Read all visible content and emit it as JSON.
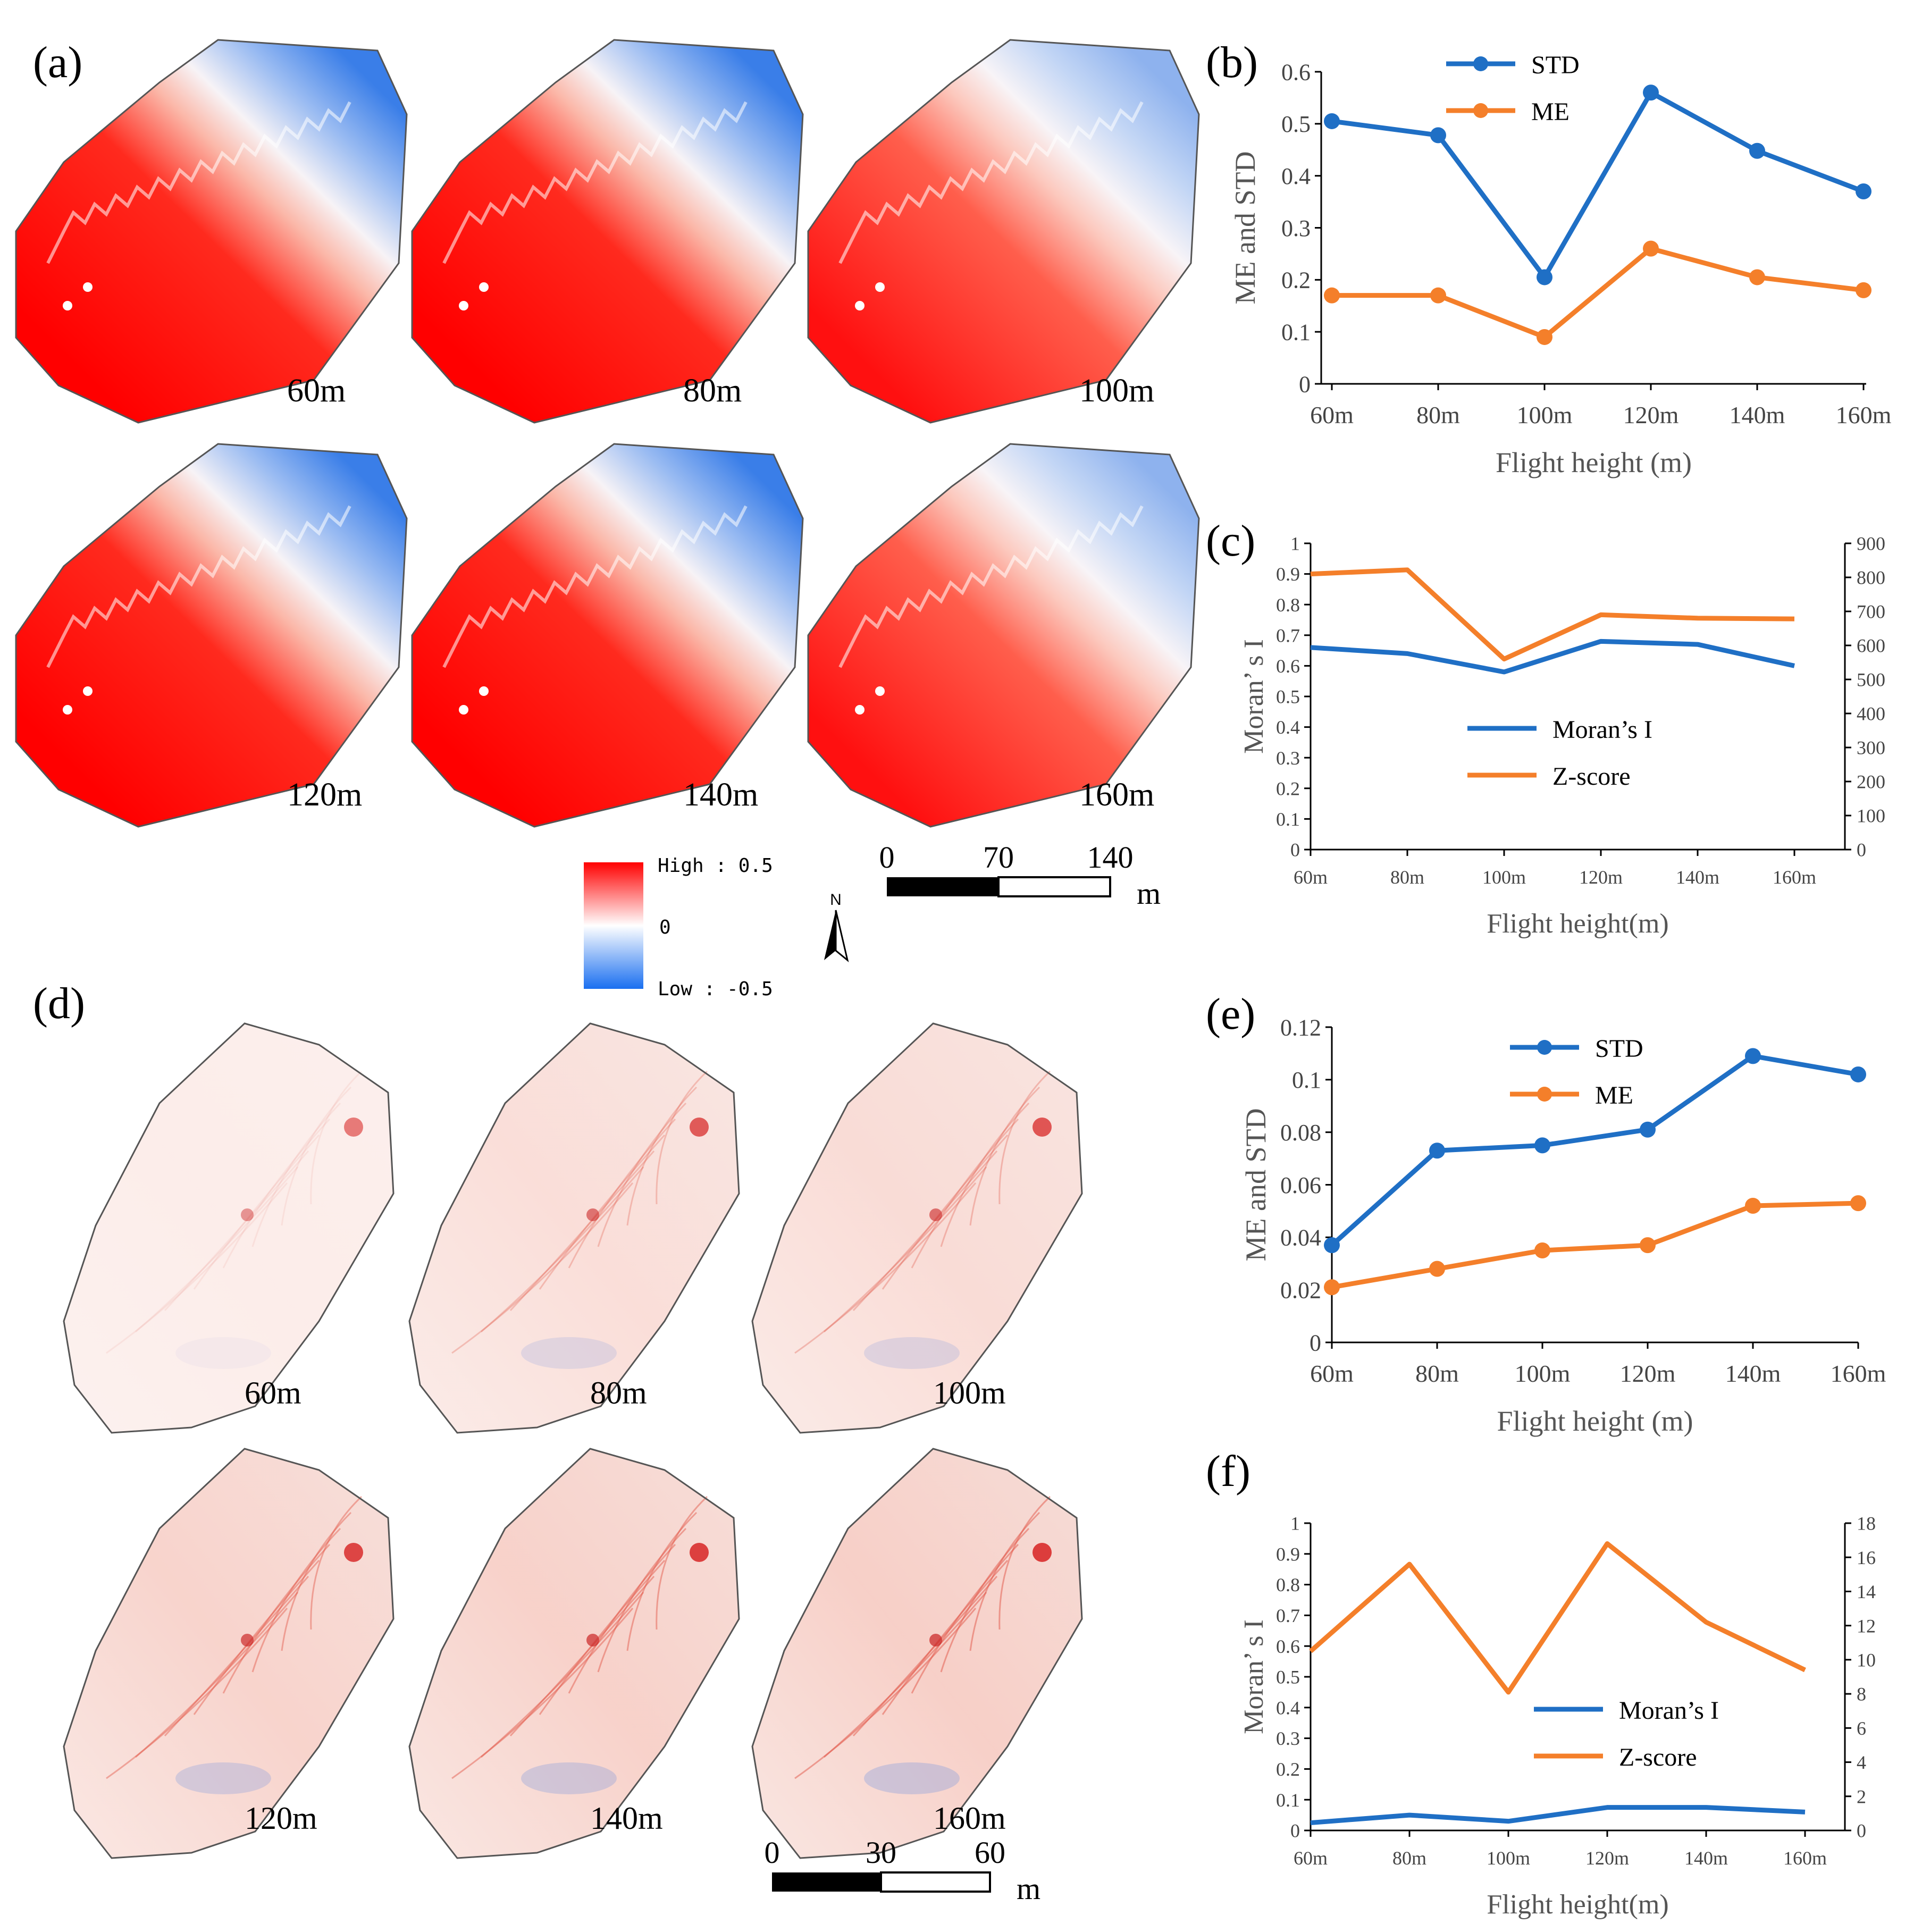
{
  "panels": {
    "a": "(a)",
    "b": "(b)",
    "c": "(c)",
    "d": "(d)",
    "e": "(e)",
    "f": "(f)"
  },
  "maps_a": {
    "labels": [
      "60m",
      "80m",
      "100m",
      "120m",
      "140m",
      "160m"
    ],
    "intensity": [
      1.0,
      1.0,
      0.7,
      1.0,
      1.0,
      0.75
    ]
  },
  "maps_d": {
    "labels": [
      "60m",
      "80m",
      "100m",
      "120m",
      "140m",
      "160m"
    ],
    "intensity": [
      0.15,
      0.5,
      0.55,
      0.75,
      0.8,
      0.85
    ]
  },
  "legend": {
    "high": "High : 0.5",
    "zero": "0",
    "low": "Low : -0.5",
    "north": "N",
    "colors": {
      "high": "#ff0000",
      "mid": "#ffffff",
      "low": "#1a6ff0"
    }
  },
  "scalebar_a": {
    "ticks": [
      "0",
      "70",
      "140"
    ],
    "unit": "m"
  },
  "scalebar_d": {
    "ticks": [
      "0",
      "30",
      "60"
    ],
    "unit": "m"
  },
  "chart_data": [
    {
      "id": "b",
      "type": "line",
      "categories": [
        "60m",
        "80m",
        "100m",
        "120m",
        "140m",
        "160m"
      ],
      "series": [
        {
          "name": "STD",
          "values": [
            0.505,
            0.478,
            0.205,
            0.56,
            0.448,
            0.37
          ],
          "color": "#1f6fc5",
          "markers": true
        },
        {
          "name": "ME",
          "values": [
            0.17,
            0.17,
            0.09,
            0.26,
            0.205,
            0.18
          ],
          "color": "#f47f2a",
          "markers": true
        }
      ],
      "yticks": [
        "0",
        "0.1",
        "0.2",
        "0.3",
        "0.4",
        "0.5",
        "0.6"
      ],
      "ylim": [
        0,
        0.6
      ],
      "ylabel": "ME and STD",
      "xlabel": "Flight height (m)",
      "legend_position": "top-center"
    },
    {
      "id": "c",
      "type": "line",
      "categories": [
        "60m",
        "80m",
        "100m",
        "120m",
        "140m",
        "160m"
      ],
      "series": [
        {
          "name": "Moran's I",
          "axis": "left",
          "values": [
            0.66,
            0.64,
            0.58,
            0.68,
            0.67,
            0.6
          ],
          "color": "#1f6fc5"
        },
        {
          "name": "Z-score",
          "axis": "right",
          "values": [
            810,
            822,
            560,
            690,
            680,
            678
          ],
          "color": "#f47f2a"
        }
      ],
      "yticks_left": [
        "0",
        "0.1",
        "0.2",
        "0.3",
        "0.4",
        "0.5",
        "0.6",
        "0.7",
        "0.8",
        "0.9",
        "1"
      ],
      "yticks_right": [
        "0",
        "100",
        "200",
        "300",
        "400",
        "500",
        "600",
        "700",
        "800",
        "900"
      ],
      "ylim_left": [
        0,
        1
      ],
      "ylim_right": [
        0,
        900
      ],
      "ylabel": "Moran’ s I",
      "xlabel": "Flight height(m)",
      "legend_labels": [
        "Moran’s I",
        "Z-score"
      ],
      "legend_position": "center"
    },
    {
      "id": "e",
      "type": "line",
      "categories": [
        "60m",
        "80m",
        "100m",
        "120m",
        "140m",
        "160m"
      ],
      "series": [
        {
          "name": "STD",
          "values": [
            0.037,
            0.073,
            0.075,
            0.081,
            0.109,
            0.102
          ],
          "color": "#1f6fc5",
          "markers": true
        },
        {
          "name": "ME",
          "values": [
            0.021,
            0.028,
            0.035,
            0.037,
            0.052,
            0.053
          ],
          "color": "#f47f2a",
          "markers": true
        }
      ],
      "yticks": [
        "0",
        "0.02",
        "0.04",
        "0.06",
        "0.08",
        "0.1",
        "0.12"
      ],
      "ylim": [
        0,
        0.12
      ],
      "ylabel": "ME and STD",
      "xlabel": "Flight height (m)",
      "legend_position": "top-center"
    },
    {
      "id": "f",
      "type": "line",
      "categories": [
        "60m",
        "80m",
        "100m",
        "120m",
        "140m",
        "160m"
      ],
      "series": [
        {
          "name": "Moran's I",
          "axis": "left",
          "values": [
            0.025,
            0.05,
            0.03,
            0.075,
            0.075,
            0.06
          ],
          "color": "#1f6fc5"
        },
        {
          "name": "Z-score",
          "axis": "right",
          "values": [
            10.5,
            15.6,
            8.1,
            16.8,
            12.2,
            9.4
          ],
          "color": "#f47f2a"
        }
      ],
      "yticks_left": [
        "0",
        "0.1",
        "0.2",
        "0.3",
        "0.4",
        "0.5",
        "0.6",
        "0.7",
        "0.8",
        "0.9",
        "1"
      ],
      "yticks_right": [
        "0",
        "2",
        "4",
        "6",
        "8",
        "10",
        "12",
        "14",
        "16",
        "18"
      ],
      "ylim_left": [
        0,
        1
      ],
      "ylim_right": [
        0,
        18
      ],
      "ylabel": "Moran’ s I",
      "xlabel": "Flight height(m)",
      "legend_labels": [
        "Moran’s I",
        "Z-score"
      ],
      "legend_position": "center-right"
    }
  ]
}
